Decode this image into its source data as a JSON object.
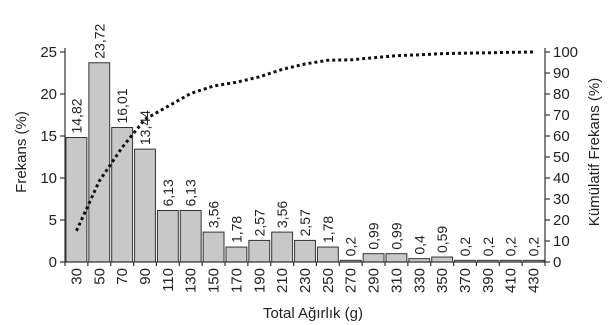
{
  "chart_data": {
    "type": "bar",
    "title": "",
    "xlabel": "Total Ağırlık (g)",
    "ylabel": "Frekans (%)",
    "y2label": "Kümülatif Frekans (%)",
    "categories": [
      "30",
      "50",
      "70",
      "90",
      "110",
      "130",
      "150",
      "170",
      "190",
      "210",
      "230",
      "250",
      "270",
      "290",
      "310",
      "330",
      "350",
      "370",
      "390",
      "410",
      "430"
    ],
    "series": [
      {
        "name": "",
        "type": "bar",
        "axis": "left",
        "values": [
          14.82,
          23.72,
          16.01,
          13.44,
          6.13,
          6.13,
          3.56,
          1.78,
          2.57,
          3.56,
          2.57,
          1.78,
          0.2,
          0.99,
          0.99,
          0.4,
          0.59,
          0.2,
          0.2,
          0.2,
          0.2
        ],
        "labels": [
          "14,82",
          "23,72",
          "16,01",
          "13,44",
          "6,13",
          "6,13",
          "3,56",
          "1,78",
          "2,57",
          "3,56",
          "2,57",
          "1,78",
          "0,2",
          "0,99",
          "0,99",
          "0,4",
          "0,59",
          "0,2",
          "0,2",
          "0,2",
          "0,2"
        ]
      },
      {
        "name": "",
        "type": "line",
        "axis": "right",
        "style": "dotted",
        "values": [
          14.82,
          38.54,
          54.55,
          67.99,
          74.12,
          80.25,
          83.81,
          85.59,
          88.16,
          91.72,
          94.29,
          96.07,
          96.27,
          97.26,
          98.25,
          98.65,
          99.24,
          99.44,
          99.64,
          99.84,
          100.0
        ]
      }
    ],
    "ylim": [
      0,
      25
    ],
    "yticks": [
      "0",
      "5",
      "10",
      "15",
      "20",
      "25"
    ],
    "y2lim": [
      0,
      100
    ],
    "y2ticks": [
      "0",
      "10",
      "20",
      "30",
      "40",
      "50",
      "60",
      "70",
      "80",
      "90",
      "100"
    ],
    "grid": false,
    "legend": "none",
    "colors": {
      "bar_fill": "#c8c8c8",
      "bar_stroke": "#333333",
      "line": "#111111"
    }
  }
}
